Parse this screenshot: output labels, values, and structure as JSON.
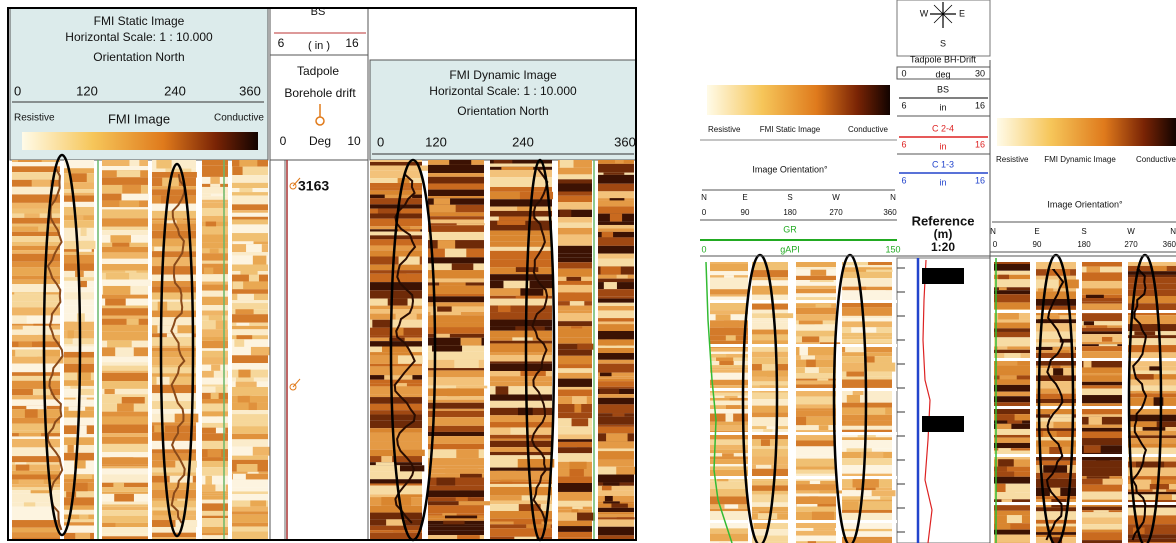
{
  "left_figure": {
    "static_header": {
      "title": "FMI Static Image",
      "scale": "Horizontal Scale: 1 : 10.000",
      "orientation": "Orientation North",
      "ticks": [
        0,
        120,
        240,
        360
      ],
      "resistive": "Resistive",
      "image_label": "FMI  Image",
      "conductive": "Conductive"
    },
    "drift_header": {
      "bs_label": "BS",
      "bs_min": 6,
      "bs_unit": "( in )",
      "bs_max": 16,
      "tadpole": "Tadpole",
      "drift": "Borehole drift",
      "deg_min": 0,
      "deg_unit": "Deg",
      "deg_max": 10
    },
    "depth_label": 3163,
    "dynamic_header": {
      "title": "FMI Dynamic Image",
      "scale": "Horizontal Scale: 1 : 10.000",
      "orientation": "Orientation North",
      "ticks": [
        0,
        120,
        240,
        360
      ]
    }
  },
  "right_figure": {
    "compass": {
      "west": "W",
      "east": "E",
      "south": "S"
    },
    "tadpole": {
      "title": "Tadpole BH-Drift",
      "min": 0,
      "unit": "deg",
      "max": 30
    },
    "bs": {
      "name": "BS",
      "min": 6,
      "unit": "in",
      "max": 16
    },
    "c24": {
      "name": "C 2-4",
      "min": 6,
      "unit": "in",
      "max": 16
    },
    "c13": {
      "name": "C 1-3",
      "min": 6,
      "unit": "in",
      "max": 16
    },
    "reference": {
      "title": "Reference",
      "unit": "(m)",
      "scale": "1:20"
    },
    "static_track": {
      "resistive": "Resistive",
      "label": "FMI Static Image",
      "conductive": "Conductive",
      "orientation_title": "Image Orientation°",
      "directions": [
        "N",
        "E",
        "S",
        "W",
        "N"
      ],
      "degrees": [
        0,
        90,
        180,
        270,
        360
      ],
      "gr": {
        "name": "GR",
        "min": 0,
        "unit": "gAPI",
        "max": 150
      }
    },
    "dynamic_track": {
      "resistive": "Resistive",
      "label": "FMI Dynamic Image",
      "conductive": "Conductive",
      "orientation_title": "Image Orientation°",
      "directions": [
        "N",
        "E",
        "S",
        "W",
        "N"
      ],
      "degrees": [
        0,
        90,
        180,
        270,
        360
      ]
    }
  }
}
